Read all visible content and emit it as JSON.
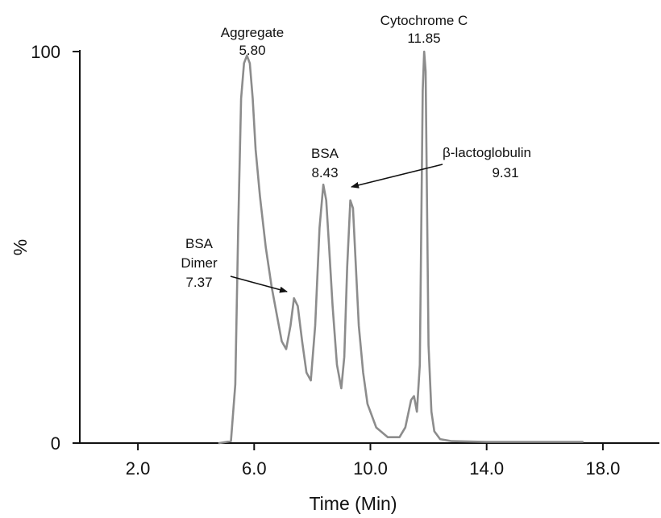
{
  "chart_data": {
    "type": "line",
    "title": "",
    "xlabel": "Time (Min)",
    "ylabel": "%",
    "xlim": [
      0.0,
      20.0
    ],
    "ylim": [
      0,
      100
    ],
    "grid": false,
    "x_ticks": [
      2.0,
      6.0,
      10.0,
      14.0,
      18.0
    ],
    "x_tick_labels": [
      "2.0",
      "6.0",
      "10.0",
      "14.0",
      "18.0"
    ],
    "y_ticks": [
      0,
      100
    ],
    "y_tick_labels": [
      "0",
      "100"
    ],
    "series": [
      {
        "color": "#8c8c8c",
        "x": [
          4.8,
          5.2,
          5.35,
          5.45,
          5.55,
          5.65,
          5.75,
          5.85,
          5.95,
          6.05,
          6.2,
          6.4,
          6.6,
          6.8,
          6.95,
          7.1,
          7.25,
          7.37,
          7.5,
          7.65,
          7.8,
          7.95,
          8.1,
          8.25,
          8.38,
          8.48,
          8.58,
          8.7,
          8.85,
          9.0,
          9.1,
          9.2,
          9.31,
          9.4,
          9.5,
          9.6,
          9.75,
          9.9,
          10.2,
          10.6,
          11.0,
          11.2,
          11.4,
          11.5,
          11.6,
          11.7,
          11.75,
          11.8,
          11.85,
          11.9,
          11.95,
          12.0,
          12.1,
          12.2,
          12.4,
          12.8,
          14.0,
          16.0,
          17.3
        ],
        "y": [
          0,
          0.5,
          15,
          55,
          88,
          97,
          99,
          97,
          88,
          75,
          63,
          50,
          40,
          32,
          26,
          24,
          30,
          37,
          35,
          26,
          18,
          16,
          30,
          55,
          66,
          62,
          50,
          35,
          20,
          14,
          22,
          45,
          62,
          60,
          45,
          30,
          18,
          10,
          4,
          1.5,
          1.5,
          4,
          11,
          12,
          8,
          20,
          55,
          90,
          100,
          95,
          60,
          25,
          8,
          3,
          1,
          0.5,
          0.3,
          0.3,
          0.3
        ]
      }
    ],
    "annotations": [
      {
        "name": "aggregate",
        "lines": [
          "Aggregate",
          "5.80"
        ],
        "x": 5.8,
        "y": 100
      },
      {
        "name": "bsa-dimer",
        "lines": [
          "BSA",
          "Dimer",
          "7.37"
        ],
        "x": 7.37,
        "y": 37
      },
      {
        "name": "bsa",
        "lines": [
          "BSA",
          "8.43"
        ],
        "x": 8.43,
        "y": 66
      },
      {
        "name": "beta-lactoglobulin",
        "lines": [
          "β-lactoglobulin",
          "9.31"
        ],
        "x": 9.31,
        "y": 62
      },
      {
        "name": "cytochrome-c",
        "lines": [
          "Cytochrome C",
          "11.85"
        ],
        "x": 11.85,
        "y": 100
      }
    ]
  }
}
